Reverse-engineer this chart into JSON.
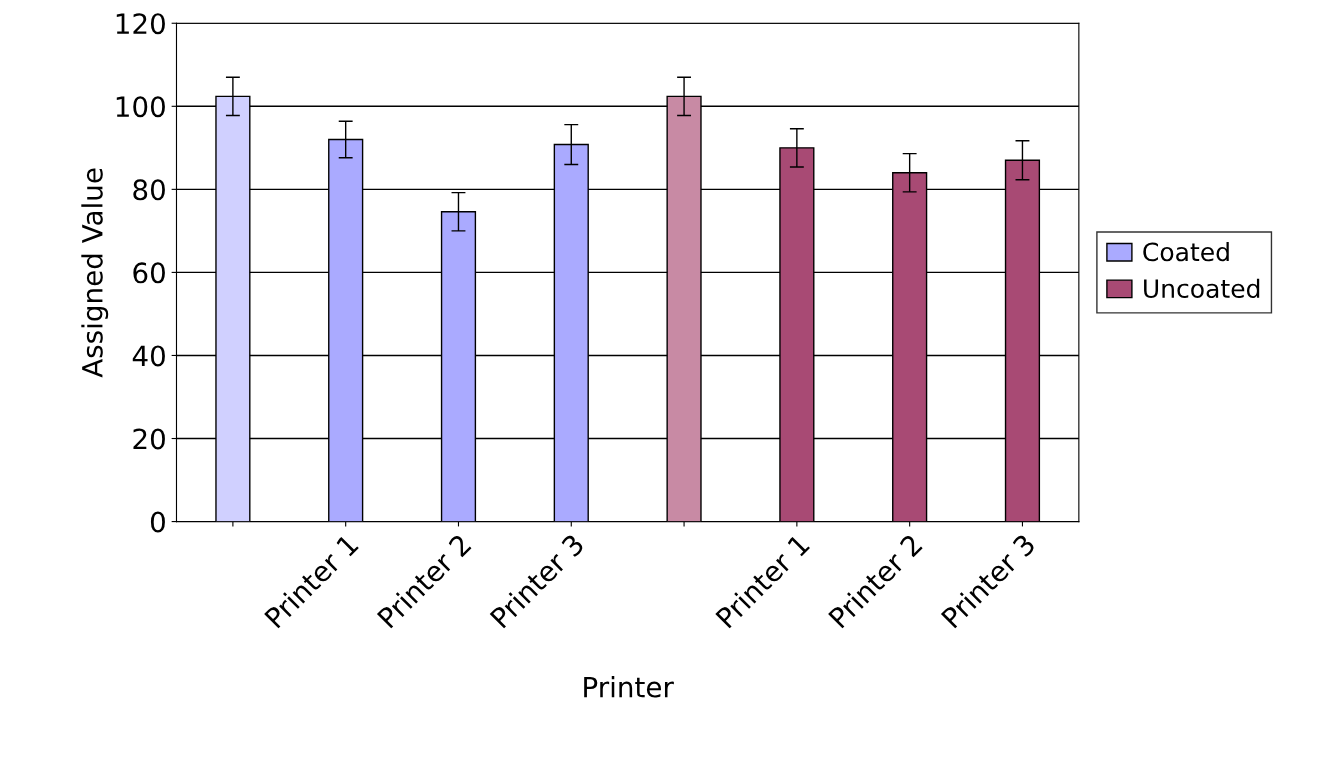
{
  "chart_data": {
    "type": "bar",
    "xlabel": "Printer",
    "ylabel": "Assigned Value",
    "categories": [
      null,
      "Printer 1",
      "Printer 2",
      "Printer 3",
      null,
      "Printer 1",
      "Printer 2",
      "Printer 3"
    ],
    "series": [
      {
        "name": "Coated",
        "color": "#aaaaff",
        "colors": [
          "#d0d0ff",
          "#aaaaff",
          "#aaaaff",
          "#aaaaff",
          null,
          null,
          null,
          null
        ],
        "values": [
          102.4,
          92,
          74.6,
          90.8,
          null,
          null,
          null,
          null
        ],
        "errors": [
          4.6,
          4.4,
          4.6,
          4.8,
          null,
          null,
          null,
          null
        ]
      },
      {
        "name": "Uncoated",
        "color": "#a84a74",
        "colors": [
          null,
          null,
          null,
          null,
          "#c88aa4",
          "#a84a74",
          "#a84a74",
          "#a84a74"
        ],
        "values": [
          null,
          null,
          null,
          null,
          102.4,
          90,
          84,
          87
        ],
        "errors": [
          null,
          null,
          null,
          null,
          4.6,
          4.6,
          4.6,
          4.7
        ]
      }
    ],
    "ylim": [
      0,
      120
    ],
    "yticks": [
      0,
      20,
      40,
      60,
      80,
      100,
      120
    ],
    "grid": "y",
    "legend": "right"
  }
}
